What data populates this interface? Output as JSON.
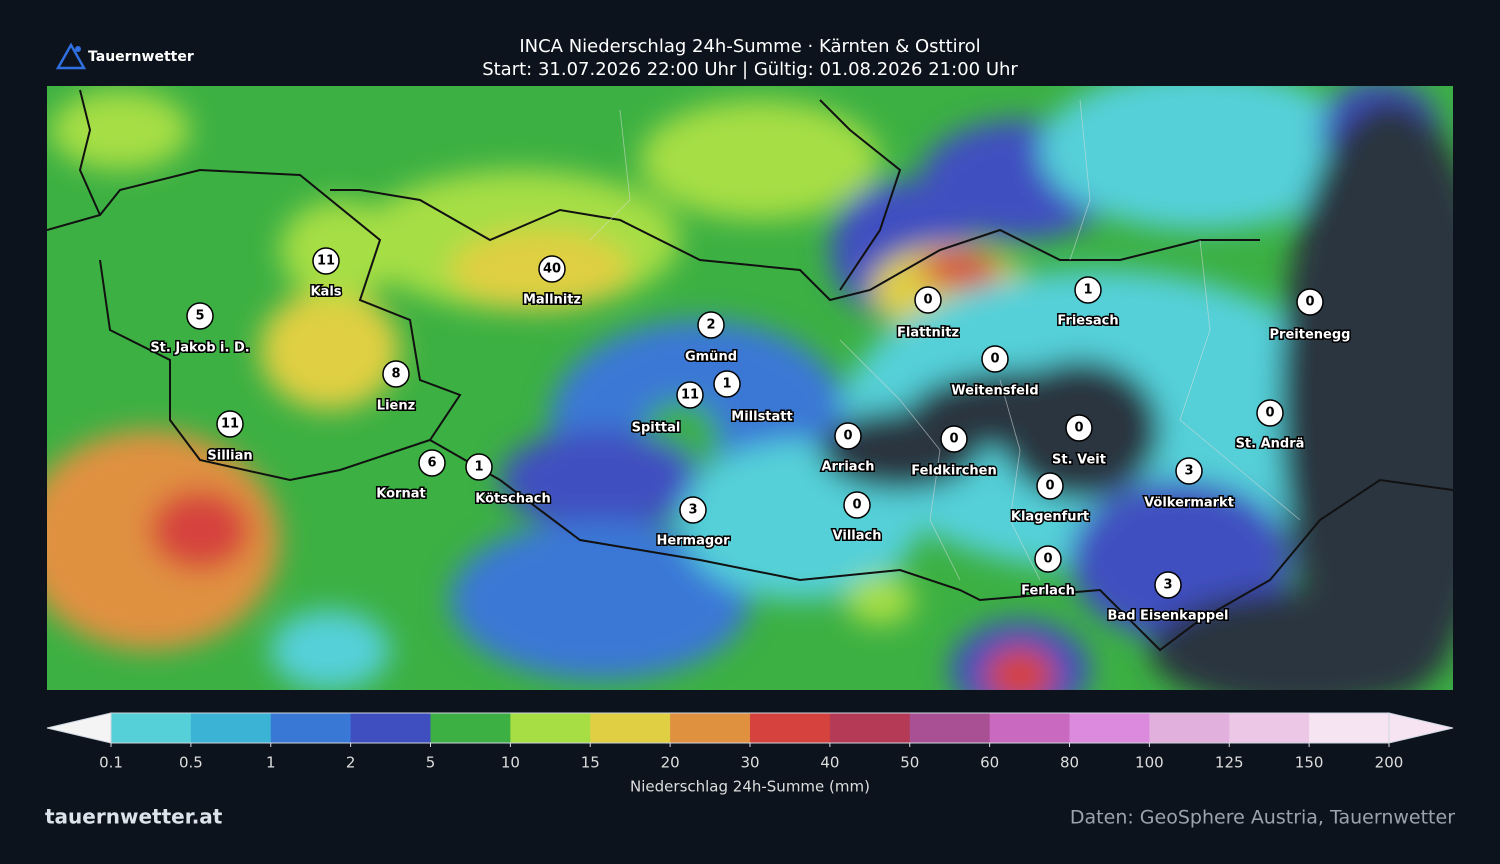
{
  "header": {
    "logo": "Tauernwetter",
    "title": "INCA Niederschlag 24h-Summe · Kärnten & Osttirol",
    "subtitle": "Start: 31.07.2026 22:00 Uhr | Gültig: 01.08.2026 21:00 Uhr"
  },
  "stations": [
    {
      "name": "St. Jakob i. D.",
      "value": 5
    },
    {
      "name": "Kals",
      "value": 11
    },
    {
      "name": "Mallnitz",
      "value": 40
    },
    {
      "name": "Sillian",
      "value": 11
    },
    {
      "name": "Lienz",
      "value": 8
    },
    {
      "name": "Gmünd",
      "value": 2
    },
    {
      "name": "Spittal",
      "value": 11
    },
    {
      "name": "Millstatt",
      "value": 1
    },
    {
      "name": "Kornat",
      "value": 6
    },
    {
      "name": "Kötschach",
      "value": 1
    },
    {
      "name": "Hermagor",
      "value": 3
    },
    {
      "name": "Flattnitz",
      "value": 0
    },
    {
      "name": "Friesach",
      "value": 1
    },
    {
      "name": "Weitensfeld",
      "value": 0
    },
    {
      "name": "Preitenegg",
      "value": 0
    },
    {
      "name": "Arriach",
      "value": 0
    },
    {
      "name": "Feldkirchen",
      "value": 0
    },
    {
      "name": "St. Veit",
      "value": 0
    },
    {
      "name": "St. Andrä",
      "value": 0
    },
    {
      "name": "Völkermarkt",
      "value": 3
    },
    {
      "name": "Klagenfurt",
      "value": 0
    },
    {
      "name": "Villach",
      "value": 0
    },
    {
      "name": "Ferlach",
      "value": 0
    },
    {
      "name": "Bad Eisenkappel",
      "value": 3
    }
  ],
  "colorbar": {
    "ticks": [
      0.1,
      0.5,
      1,
      2,
      5,
      10,
      15,
      20,
      30,
      40,
      50,
      60,
      80,
      100,
      125,
      150,
      200
    ],
    "colors": [
      "#55d0d8",
      "#3ab3d5",
      "#3a78d6",
      "#3f4fc0",
      "#3cb043",
      "#a6de44",
      "#e0cf42",
      "#e0913f",
      "#d6423e",
      "#b53a55",
      "#a94f93",
      "#c969c0",
      "#dc8ade",
      "#e2b0dc",
      "#ecc8e6",
      "#f6e4f3"
    ],
    "label": "Niederschlag 24h-Summe (mm)"
  },
  "footer": {
    "site": "tauernwetter.at",
    "source": "Daten: GeoSphere Austria, Tauernwetter"
  }
}
